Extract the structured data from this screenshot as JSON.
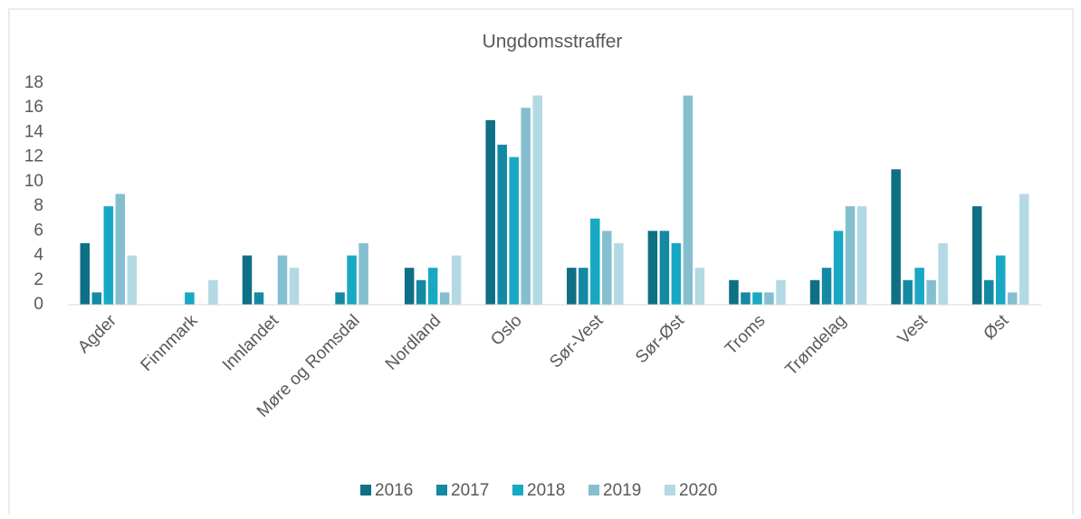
{
  "chart_data": {
    "type": "bar",
    "title": "Ungdomsstraffer",
    "categories": [
      "Agder",
      "Finnmark",
      "Innlandet",
      "Møre og Romsdal",
      "Nordland",
      "Oslo",
      "Sør-Vest",
      "Sør-Øst",
      "Troms",
      "Trøndelag",
      "Vest",
      "Øst"
    ],
    "series": [
      {
        "name": "2016",
        "color": "#0e6f85",
        "values": [
          5,
          0,
          4,
          0,
          3,
          15,
          3,
          6,
          2,
          2,
          11,
          8
        ]
      },
      {
        "name": "2017",
        "color": "#1389a3",
        "values": [
          1,
          0,
          1,
          1,
          2,
          13,
          3,
          6,
          1,
          3,
          2,
          2
        ]
      },
      {
        "name": "2018",
        "color": "#17a8c4",
        "values": [
          8,
          1,
          0,
          4,
          3,
          12,
          7,
          5,
          1,
          6,
          3,
          4
        ]
      },
      {
        "name": "2019",
        "color": "#85bfcf",
        "values": [
          9,
          0,
          4,
          5,
          1,
          16,
          6,
          17,
          1,
          8,
          2,
          1
        ]
      },
      {
        "name": "2020",
        "color": "#b3d9e4",
        "values": [
          4,
          2,
          3,
          0,
          4,
          17,
          5,
          3,
          2,
          8,
          5,
          9
        ]
      }
    ],
    "ylim": [
      0,
      18
    ],
    "yticks": [
      0,
      2,
      4,
      6,
      8,
      10,
      12,
      14,
      16,
      18
    ],
    "grid": false,
    "legend": "bottom"
  }
}
